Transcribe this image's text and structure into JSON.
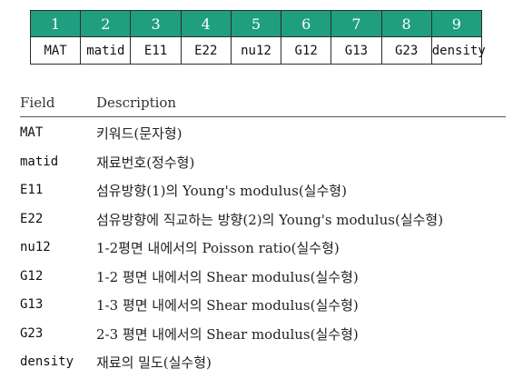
{
  "format_table": {
    "numbers": [
      "1",
      "2",
      "3",
      "4",
      "5",
      "6",
      "7",
      "8",
      "9"
    ],
    "names": [
      "MAT",
      "matid",
      "E11",
      "E22",
      "nu12",
      "G12",
      "G13",
      "G23",
      "density"
    ],
    "header_color": "#1f9e80"
  },
  "description_table": {
    "header": {
      "field": "Field",
      "description": "Description"
    },
    "rows": [
      {
        "field": "MAT",
        "description": "키워드(문자형)"
      },
      {
        "field": "matid",
        "description": "재료번호(정수형)"
      },
      {
        "field": "E11",
        "description": "섬유방향(1)의 Young's modulus(실수형)"
      },
      {
        "field": "E22",
        "description": "섬유방향에 직교하는 방향(2)의 Young's modulus(실수형)"
      },
      {
        "field": "nu12",
        "description": "1-2평면 내에서의 Poisson ratio(실수형)"
      },
      {
        "field": "G12",
        "description": "1-2 평면 내에서의 Shear modulus(실수형)"
      },
      {
        "field": "G13",
        "description": "1-3 평면 내에서의 Shear modulus(실수형)"
      },
      {
        "field": "G23",
        "description": "2-3 평면 내에서의 Shear modulus(실수형)"
      },
      {
        "field": "density",
        "description": "재료의 밀도(실수형)"
      }
    ]
  }
}
